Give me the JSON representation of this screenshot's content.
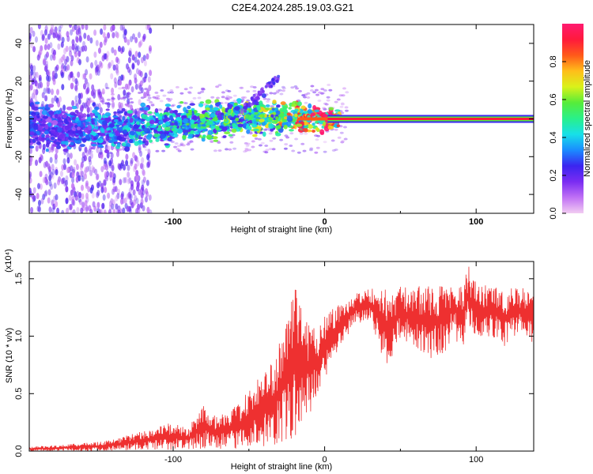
{
  "figure": {
    "title": "C2E4.2024.285.19.03.G21"
  },
  "chart_data": [
    {
      "type": "heatmap",
      "xlabel": "Height of straight line (km)",
      "ylabel": "Frequency (Hz)",
      "xlim": [
        -195,
        138
      ],
      "ylim": [
        -50,
        50
      ],
      "x_ticks": [
        "-100",
        "0",
        "100"
      ],
      "y_ticks": [
        "-40",
        "-20",
        "0",
        "20",
        "40"
      ],
      "colorbar": {
        "label": "Normalized spectral amplitude",
        "range": [
          0,
          1
        ],
        "ticks": [
          "0.0",
          "0.2",
          "0.4",
          "0.6",
          "0.8"
        ],
        "colors": [
          "#f2ccf2",
          "#c071f5",
          "#7a2cf2",
          "#3b25f0",
          "#1a8cff",
          "#17e0e8",
          "#29f08a",
          "#56ec3a",
          "#d9f21a",
          "#ffbe1a",
          "#ff5a1a",
          "#ff1a3c",
          "#ff1a70"
        ]
      },
      "ridge": {
        "description": "dominant frequency band",
        "x": [
          -195,
          -175,
          -150,
          -125,
          -100,
          -80,
          -60,
          -45,
          -35,
          -25,
          -15,
          -5,
          0,
          10,
          138
        ],
        "frequency": [
          -4,
          -5,
          -5,
          -5,
          -3,
          -1,
          0,
          1,
          1,
          1,
          0,
          0,
          -1,
          0,
          0
        ],
        "amplitude": [
          0.25,
          0.3,
          0.35,
          0.4,
          0.45,
          0.5,
          0.55,
          0.6,
          0.6,
          0.7,
          0.8,
          0.9,
          0.95,
          1.0,
          1.0
        ]
      },
      "grid": false
    },
    {
      "type": "line",
      "xlabel": "Height of straight line (km)",
      "ylabel": "SNR (10 * v/v)",
      "y_multiplier": "(x10⁴)",
      "xlim": [
        -195,
        138
      ],
      "ylim": [
        0,
        1.65
      ],
      "x_ticks": [
        "-100",
        "0",
        "100"
      ],
      "y_ticks": [
        "0.0",
        "0.5",
        "1.0",
        "1.5"
      ],
      "color": "#ee3030",
      "series": [
        {
          "envelope_upper": {
            "x": [
              -195,
              -180,
              -160,
              -140,
              -120,
              -100,
              -90,
              -80,
              -70,
              -60,
              -50,
              -40,
              -30,
              -22,
              -18,
              -14,
              -10,
              -5,
              0,
              5,
              10,
              20,
              30,
              40,
              60,
              80,
              90,
              95,
              100,
              110,
              120,
              130,
              138
            ],
            "y": [
              0.04,
              0.05,
              0.07,
              0.1,
              0.18,
              0.25,
              0.2,
              0.42,
              0.3,
              0.38,
              0.55,
              0.68,
              0.95,
              1.42,
              1.4,
              1.22,
              1.15,
              1.1,
              1.22,
              1.25,
              1.3,
              1.38,
              1.42,
              1.42,
              1.44,
              1.45,
              1.48,
              1.62,
              1.46,
              1.44,
              1.42,
              1.42,
              1.4
            ]
          },
          "envelope_lower": {
            "x": [
              -195,
              -160,
              -120,
              -100,
              -80,
              -60,
              -40,
              -30,
              -20,
              -10,
              0,
              10,
              20,
              30,
              40,
              50,
              60,
              70,
              80,
              85,
              90,
              95,
              100,
              110,
              120,
              130,
              138
            ],
            "y": [
              0.0,
              0.0,
              0.01,
              0.01,
              0.02,
              0.02,
              0.03,
              0.05,
              0.1,
              0.3,
              0.6,
              0.9,
              1.1,
              1.15,
              0.7,
              0.95,
              0.9,
              0.8,
              0.85,
              1.05,
              0.82,
              1.1,
              0.95,
              1.0,
              0.9,
              1.05,
              0.92
            ]
          }
        }
      ]
    }
  ]
}
